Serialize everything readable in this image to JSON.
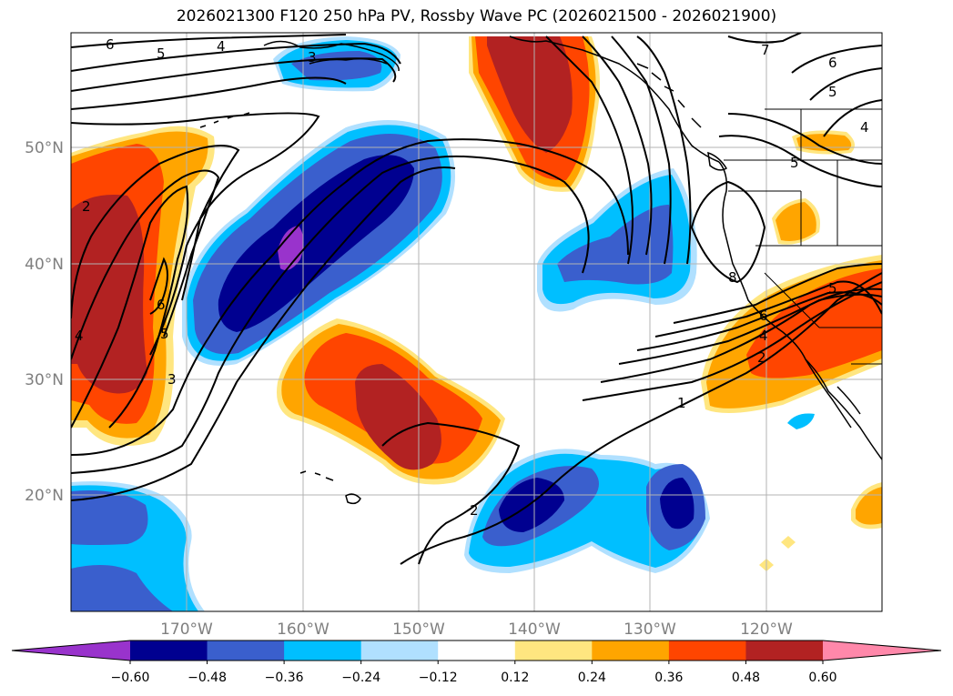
{
  "title": "2026021300 F120 250 hPa PV, Rossby Wave PC (2026021500 - 2026021900)",
  "map": {
    "lon_range": [
      -180,
      -110
    ],
    "lat_range": [
      10,
      60
    ],
    "lat_ticks": [
      "50°N",
      "40°N",
      "30°N",
      "20°N"
    ],
    "lon_ticks": [
      "170°W",
      "160°W",
      "150°W",
      "140°W",
      "130°W",
      "120°W"
    ],
    "gridlines": true
  },
  "colorbar": {
    "ticks": [
      "−0.60",
      "−0.48",
      "−0.36",
      "−0.24",
      "−0.12",
      "0.12",
      "0.24",
      "0.36",
      "0.48",
      "0.60"
    ],
    "colors": [
      "#9933cc",
      "#000090",
      "#3a5fcd",
      "#00bfff",
      "#b0e0ff",
      "#ffffff",
      "#ffe680",
      "#ffa500",
      "#ff4500",
      "#b22222",
      "#ff88aa"
    ],
    "extend": "both"
  },
  "pv_contour_labels": [
    {
      "text": "6"
    },
    {
      "text": "5"
    },
    {
      "text": "4"
    },
    {
      "text": "3"
    },
    {
      "text": "7"
    },
    {
      "text": "6"
    },
    {
      "text": "5"
    },
    {
      "text": "4"
    },
    {
      "text": "2"
    },
    {
      "text": "6"
    },
    {
      "text": "5"
    },
    {
      "text": "4"
    },
    {
      "text": "3"
    },
    {
      "text": "8"
    },
    {
      "text": "6"
    },
    {
      "text": "5"
    },
    {
      "text": "4"
    },
    {
      "text": "2"
    },
    {
      "text": "1"
    },
    {
      "text": "2"
    },
    {
      "text": "5"
    }
  ]
}
